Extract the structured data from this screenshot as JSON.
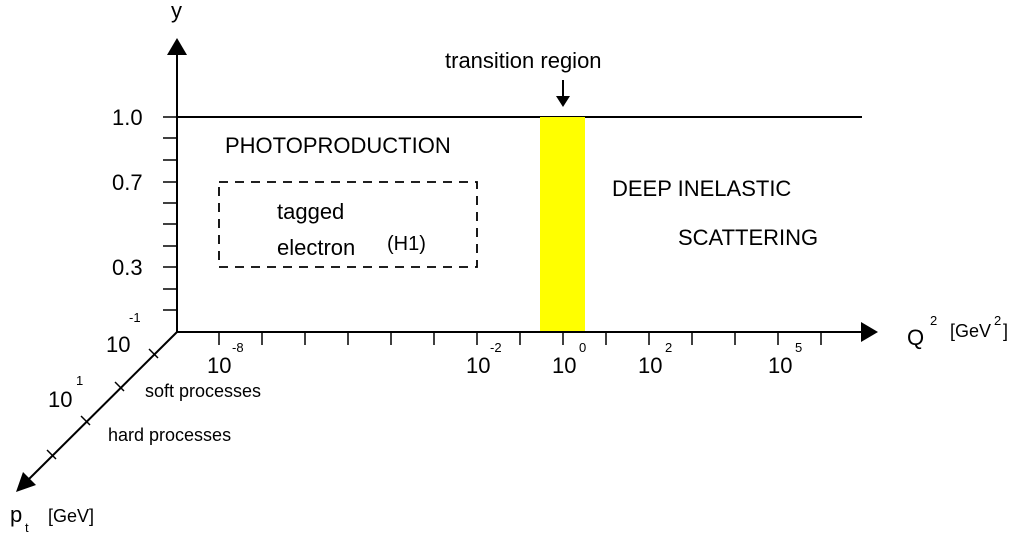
{
  "axes": {
    "y_label": "y",
    "x_label": "Q",
    "x_label_exp": "2",
    "x_unit_pre": "[GeV",
    "x_unit_exp": "2",
    "x_unit_post": "]",
    "pt_label": "p",
    "pt_sub": "t",
    "pt_unit": "[GeV]"
  },
  "y_ticks": [
    "1.0",
    "0.7",
    "0.3"
  ],
  "x_ticks": [
    {
      "base": "10",
      "exp": "-8"
    },
    {
      "base": "10",
      "exp": "-2"
    },
    {
      "base": "10",
      "exp": "0"
    },
    {
      "base": "10",
      "exp": "2"
    },
    {
      "base": "10",
      "exp": "5"
    }
  ],
  "pt_ticks": [
    {
      "base": "10",
      "exp": "-1"
    },
    {
      "base": "10",
      "exp": "1"
    }
  ],
  "regions": {
    "photoproduction": "PHOTOPRODUCTION",
    "dis_line1": "DEEP INELASTIC",
    "dis_line2": "SCATTERING",
    "transition": "transition region",
    "tagged_line1": "tagged",
    "tagged_line2": "electron",
    "tagged_h1": "(H1)",
    "soft": "soft processes",
    "hard": "hard processes"
  },
  "colors": {
    "transition_band": "#ffff00",
    "ink": "#000000"
  }
}
